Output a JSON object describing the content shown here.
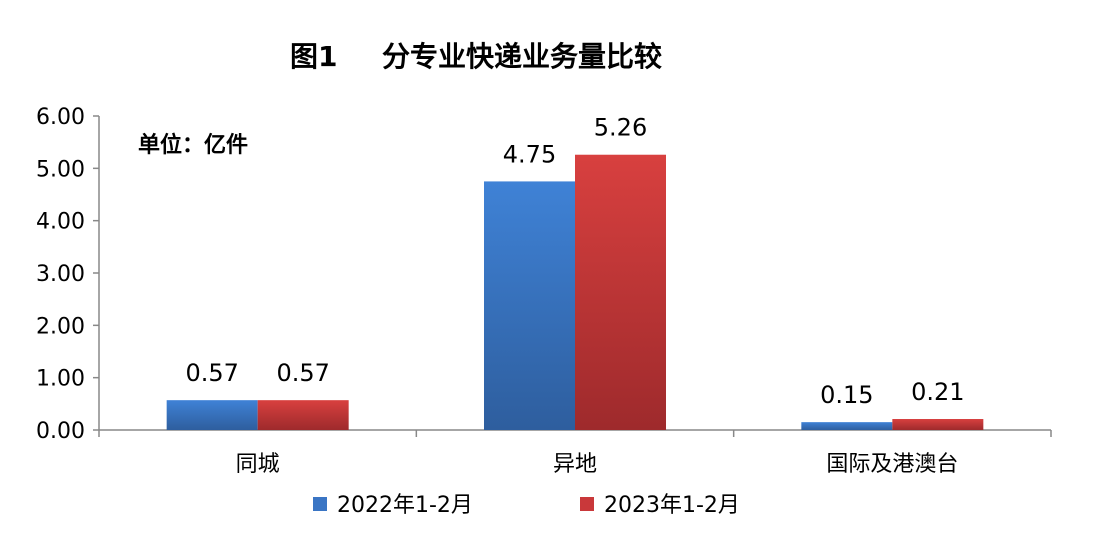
{
  "chart_data": {
    "type": "bar",
    "title_prefix": "图1",
    "title": "分专业快递业务量比较",
    "unit_note": "单位：亿件",
    "categories": [
      "同城",
      "异地",
      "国际及港澳台"
    ],
    "series": [
      {
        "name": "2022年1-2月",
        "values": [
          0.57,
          4.75,
          0.15
        ],
        "labels": [
          "0.57",
          "4.75",
          "0.15"
        ],
        "color": "#3A75C4"
      },
      {
        "name": "2023年1-2月",
        "values": [
          0.57,
          5.26,
          0.21
        ],
        "labels": [
          "0.57",
          "5.26",
          "0.21"
        ],
        "color": "#C9383A"
      }
    ],
    "y_ticks": [
      "0.00",
      "1.00",
      "2.00",
      "3.00",
      "4.00",
      "5.00",
      "6.00"
    ],
    "ylim": [
      0,
      6
    ],
    "grid": false,
    "legend_position": "bottom"
  }
}
